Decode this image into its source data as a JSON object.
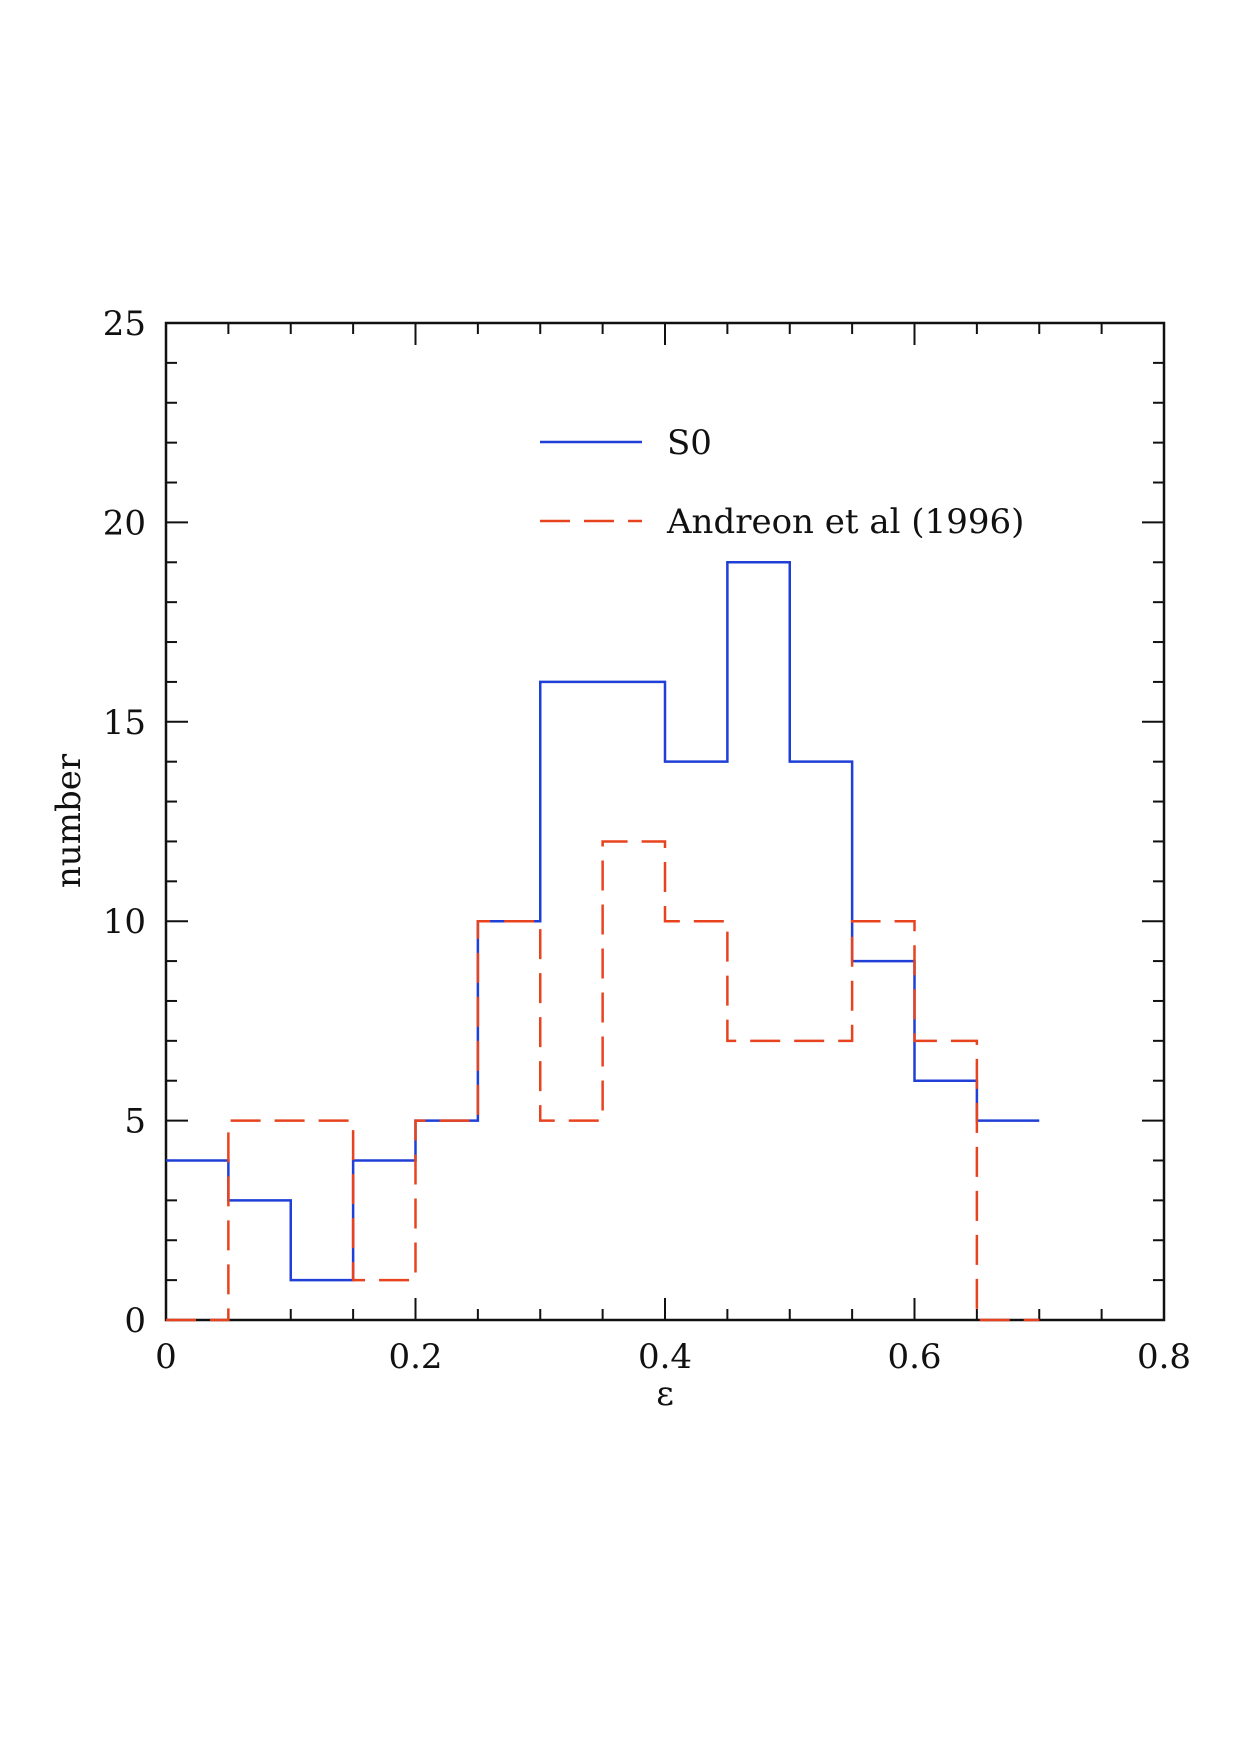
{
  "chart_data": {
    "type": "histogram",
    "xlabel": "ε",
    "ylabel": "number",
    "xlim": [
      0,
      0.8
    ],
    "ylim": [
      0,
      25
    ],
    "x_ticks": [
      {
        "value": 0,
        "label": "0"
      },
      {
        "value": 0.2,
        "label": "0.2"
      },
      {
        "value": 0.4,
        "label": "0.4"
      },
      {
        "value": 0.6,
        "label": "0.6"
      },
      {
        "value": 0.8,
        "label": "0.8"
      }
    ],
    "y_ticks": [
      {
        "value": 0,
        "label": "0"
      },
      {
        "value": 5,
        "label": "5"
      },
      {
        "value": 10,
        "label": "10"
      },
      {
        "value": 15,
        "label": "15"
      },
      {
        "value": 20,
        "label": "20"
      },
      {
        "value": 25,
        "label": "25"
      }
    ],
    "x_minor_step": 0.05,
    "y_minor_step": 1,
    "bin_width": 0.05,
    "legend_position": "top-center",
    "grid": false,
    "series": [
      {
        "name": "S0",
        "color": "#1f3fd6",
        "line_style": "solid",
        "bin_starts": [
          0,
          0.05,
          0.1,
          0.15,
          0.2,
          0.25,
          0.3,
          0.35,
          0.4,
          0.45,
          0.5,
          0.55,
          0.6,
          0.65
        ],
        "values": [
          4,
          3,
          1,
          4,
          5,
          10,
          16,
          16,
          14,
          19,
          14,
          9,
          6,
          5
        ]
      },
      {
        "name": "Andreon et al (1996)",
        "color": "#e8431f",
        "line_style": "dashed",
        "bin_starts": [
          0,
          0.05,
          0.1,
          0.15,
          0.2,
          0.25,
          0.3,
          0.35,
          0.4,
          0.45,
          0.5,
          0.55,
          0.6,
          0.65
        ],
        "values": [
          0,
          5,
          5,
          1,
          5,
          10,
          5,
          12,
          10,
          7,
          7,
          10,
          7,
          0
        ]
      }
    ]
  }
}
